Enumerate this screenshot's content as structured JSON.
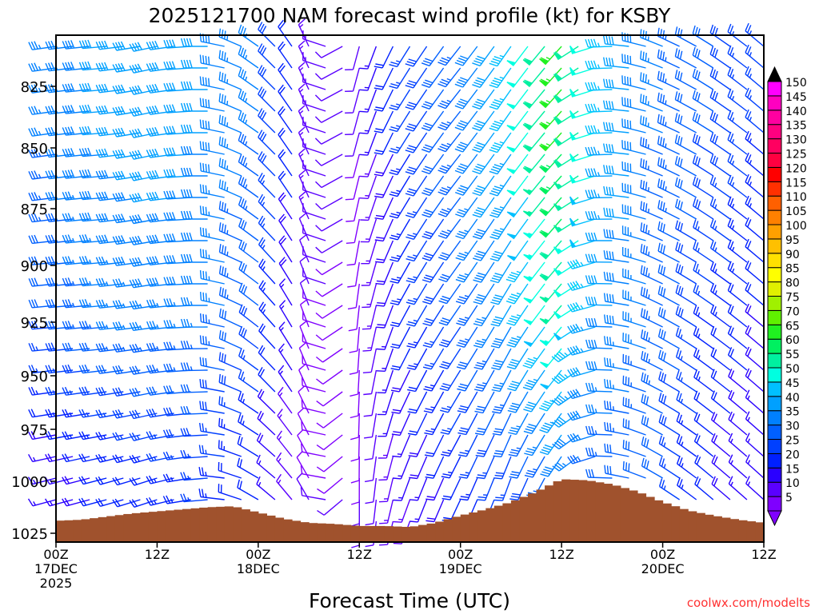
{
  "chart_data": {
    "type": "wind-barb-time-height",
    "title": "2025121700 NAM forecast wind profile (kt) for KSBY",
    "xlabel": "Forecast Time (UTC)",
    "ylabel": "",
    "credit": "coolwx.com/modelts",
    "xlim_hours": [
      0,
      84
    ],
    "ylim_hpa": [
      804,
      1029
    ],
    "y_ticks": [
      {
        "p": 825,
        "label": "825"
      },
      {
        "p": 850,
        "label": "850"
      },
      {
        "p": 875,
        "label": "875"
      },
      {
        "p": 900,
        "label": "900"
      },
      {
        "p": 925,
        "label": "925"
      },
      {
        "p": 950,
        "label": "950"
      },
      {
        "p": 975,
        "label": "975"
      },
      {
        "p": 1000,
        "label": "1000"
      },
      {
        "p": 1025,
        "label": "1025"
      }
    ],
    "x_ticks": [
      {
        "h": 0,
        "l1": "00Z",
        "l2": "17DEC",
        "l3": "2025"
      },
      {
        "h": 12,
        "l1": "12Z",
        "l2": "",
        "l3": ""
      },
      {
        "h": 24,
        "l1": "00Z",
        "l2": "18DEC",
        "l3": ""
      },
      {
        "h": 36,
        "l1": "12Z",
        "l2": "",
        "l3": ""
      },
      {
        "h": 48,
        "l1": "00Z",
        "l2": "19DEC",
        "l3": ""
      },
      {
        "h": 60,
        "l1": "12Z",
        "l2": "",
        "l3": ""
      },
      {
        "h": 72,
        "l1": "00Z",
        "l2": "20DEC",
        "l3": ""
      },
      {
        "h": 84,
        "l1": "12Z",
        "l2": "",
        "l3": ""
      }
    ],
    "wind": {
      "times_h": [
        0,
        6,
        12,
        18,
        24,
        30,
        36,
        42,
        48,
        54,
        60,
        66,
        72,
        78,
        84
      ],
      "levels_hpa": [
        850,
        925,
        1000
      ],
      "dir_deg": [
        [
          262,
          265,
          258,
          270,
          305,
          335,
          195,
          212,
          218,
          215,
          222,
          268,
          292,
          302,
          310
        ],
        [
          265,
          265,
          262,
          270,
          308,
          340,
          185,
          208,
          214,
          210,
          220,
          272,
          296,
          305,
          310
        ],
        [
          255,
          255,
          252,
          265,
          300,
          330,
          180,
          200,
          205,
          200,
          212,
          272,
          300,
          310,
          312
        ]
      ],
      "speed_kt": [
        [
          35,
          40,
          42,
          40,
          35,
          15,
          10,
          25,
          35,
          45,
          65,
          45,
          35,
          30,
          25
        ],
        [
          30,
          35,
          37,
          37,
          30,
          10,
          8,
          22,
          30,
          40,
          55,
          40,
          35,
          25,
          20
        ],
        [
          15,
          20,
          22,
          25,
          20,
          10,
          10,
          15,
          22,
          27,
          35,
          32,
          30,
          20,
          15
        ]
      ]
    },
    "surface_pressure": {
      "times_h": [
        0,
        3,
        6,
        9,
        12,
        15,
        18,
        21,
        24,
        27,
        30,
        33,
        36,
        39,
        42,
        45,
        48,
        51,
        54,
        57,
        60,
        63,
        66,
        69,
        72,
        75,
        78,
        81,
        84
      ],
      "hpa": [
        1019,
        1018.5,
        1017,
        1015.5,
        1014.5,
        1013.5,
        1012.5,
        1012,
        1015,
        1018,
        1020,
        1020.5,
        1021.5,
        1021.5,
        1022,
        1020,
        1016.5,
        1013.5,
        1010,
        1005,
        999,
        999.5,
        1001.5,
        1005,
        1010,
        1014,
        1016.5,
        1018.5,
        1020
      ],
      "color": "#a0522d"
    },
    "colorbar": {
      "labels": [
        "5",
        "10",
        "15",
        "20",
        "25",
        "30",
        "35",
        "40",
        "45",
        "50",
        "55",
        "60",
        "65",
        "70",
        "75",
        "80",
        "85",
        "90",
        "95",
        "100",
        "105",
        "110",
        "115",
        "120",
        "125",
        "130",
        "135",
        "140",
        "145",
        "150"
      ],
      "colors": [
        "#7f00ff",
        "#5a00ff",
        "#2a00ff",
        "#0020ff",
        "#0040ff",
        "#0060ff",
        "#0080ff",
        "#00a0ff",
        "#00c0ff",
        "#00ffe0",
        "#00f0a0",
        "#00f060",
        "#20f020",
        "#60f000",
        "#a0f000",
        "#e0f000",
        "#ffff00",
        "#ffe000",
        "#ffc000",
        "#ffa000",
        "#ff8000",
        "#ff6000",
        "#ff3000",
        "#ff0000",
        "#ff0040",
        "#ff0060",
        "#ff0080",
        "#ff00a0",
        "#ff00c0",
        "#ff00ff"
      ],
      "over_color": "#000000",
      "under_color": "#8000ff"
    }
  }
}
